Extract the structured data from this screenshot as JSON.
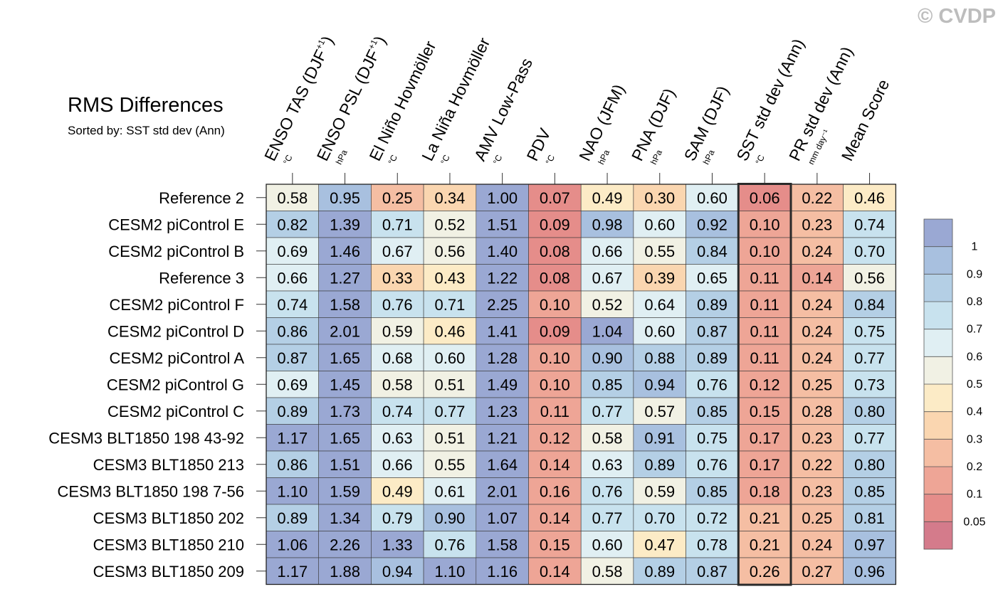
{
  "watermark": "© CVDP",
  "chart_data": {
    "type": "heatmap",
    "title": "RMS Differences",
    "subtitle": "Sorted by: SST std dev (Ann)",
    "columns": [
      {
        "label": "ENSO TAS (DJF",
        "sup": "+1",
        "close": ")",
        "unit": "°C"
      },
      {
        "label": "ENSO PSL (DJF",
        "sup": "+1",
        "close": ")",
        "unit": "hPa"
      },
      {
        "label": "El Niño Hovmöller",
        "sup": "",
        "close": "",
        "unit": "°C"
      },
      {
        "label": "La Niña Hovmöller",
        "sup": "",
        "close": "",
        "unit": "°C"
      },
      {
        "label": "AMV Low-Pass",
        "sup": "",
        "close": "",
        "unit": "°C"
      },
      {
        "label": "PDV",
        "sup": "",
        "close": "",
        "unit": "°C"
      },
      {
        "label": "NAO (JFM)",
        "sup": "",
        "close": "",
        "unit": "hPa"
      },
      {
        "label": "PNA (DJF)",
        "sup": "",
        "close": "",
        "unit": "hPa"
      },
      {
        "label": "SAM (DJF)",
        "sup": "",
        "close": "",
        "unit": "hPa"
      },
      {
        "label": "SST std dev (Ann)",
        "sup": "",
        "close": "",
        "unit": "°C"
      },
      {
        "label": "PR std dev (Ann)",
        "sup": "",
        "close": "",
        "unit": "mm day⁻¹"
      },
      {
        "label": "Mean Score",
        "sup": "",
        "close": "",
        "unit": ""
      }
    ],
    "highlight_column": 9,
    "rows": [
      {
        "label": "Reference 2",
        "values": [
          "0.58",
          "0.95",
          "0.25",
          "0.34",
          "1.00",
          "0.07",
          "0.49",
          "0.30",
          "0.60",
          "0.06",
          "0.22",
          "0.46"
        ]
      },
      {
        "label": "CESM2 piControl E",
        "values": [
          "0.82",
          "1.39",
          "0.71",
          "0.52",
          "1.51",
          "0.09",
          "0.98",
          "0.60",
          "0.92",
          "0.10",
          "0.23",
          "0.74"
        ]
      },
      {
        "label": "CESM2 piControl B",
        "values": [
          "0.69",
          "1.46",
          "0.67",
          "0.56",
          "1.40",
          "0.08",
          "0.66",
          "0.55",
          "0.84",
          "0.10",
          "0.24",
          "0.70"
        ]
      },
      {
        "label": "Reference 3",
        "values": [
          "0.66",
          "1.27",
          "0.33",
          "0.43",
          "1.22",
          "0.08",
          "0.67",
          "0.39",
          "0.65",
          "0.11",
          "0.14",
          "0.56"
        ]
      },
      {
        "label": "CESM2 piControl F",
        "values": [
          "0.74",
          "1.58",
          "0.76",
          "0.71",
          "2.25",
          "0.10",
          "0.52",
          "0.64",
          "0.89",
          "0.11",
          "0.24",
          "0.84"
        ]
      },
      {
        "label": "CESM2 piControl D",
        "values": [
          "0.86",
          "2.01",
          "0.59",
          "0.46",
          "1.41",
          "0.09",
          "1.04",
          "0.60",
          "0.87",
          "0.11",
          "0.24",
          "0.75"
        ]
      },
      {
        "label": "CESM2 piControl A",
        "values": [
          "0.87",
          "1.65",
          "0.68",
          "0.60",
          "1.28",
          "0.10",
          "0.90",
          "0.88",
          "0.89",
          "0.11",
          "0.24",
          "0.77"
        ]
      },
      {
        "label": "CESM2 piControl G",
        "values": [
          "0.69",
          "1.45",
          "0.58",
          "0.51",
          "1.49",
          "0.10",
          "0.85",
          "0.94",
          "0.76",
          "0.12",
          "0.25",
          "0.73"
        ]
      },
      {
        "label": "CESM2 piControl C",
        "values": [
          "0.89",
          "1.73",
          "0.74",
          "0.77",
          "1.23",
          "0.11",
          "0.77",
          "0.57",
          "0.85",
          "0.15",
          "0.28",
          "0.80"
        ]
      },
      {
        "label": "CESM3 BLT1850 198 43-92",
        "values": [
          "1.17",
          "1.65",
          "0.63",
          "0.51",
          "1.21",
          "0.12",
          "0.58",
          "0.91",
          "0.75",
          "0.17",
          "0.23",
          "0.77"
        ]
      },
      {
        "label": "CESM3 BLT1850 213",
        "values": [
          "0.86",
          "1.51",
          "0.66",
          "0.55",
          "1.64",
          "0.14",
          "0.63",
          "0.89",
          "0.76",
          "0.17",
          "0.22",
          "0.80"
        ]
      },
      {
        "label": "CESM3 BLT1850 198 7-56",
        "values": [
          "1.10",
          "1.59",
          "0.49",
          "0.61",
          "2.01",
          "0.16",
          "0.76",
          "0.59",
          "0.85",
          "0.18",
          "0.23",
          "0.85"
        ]
      },
      {
        "label": "CESM3 BLT1850 202",
        "values": [
          "0.89",
          "1.34",
          "0.79",
          "0.90",
          "1.07",
          "0.14",
          "0.77",
          "0.70",
          "0.72",
          "0.21",
          "0.25",
          "0.81"
        ]
      },
      {
        "label": "CESM3 BLT1850 210",
        "values": [
          "1.06",
          "2.26",
          "1.33",
          "0.76",
          "1.58",
          "0.15",
          "0.60",
          "0.47",
          "0.78",
          "0.21",
          "0.24",
          "0.97"
        ]
      },
      {
        "label": "CESM3 BLT1850 209",
        "values": [
          "1.17",
          "1.88",
          "0.94",
          "1.10",
          "1.16",
          "0.14",
          "0.58",
          "0.89",
          "0.87",
          "0.26",
          "0.27",
          "0.96"
        ]
      }
    ],
    "colorbar": {
      "ticks": [
        "1",
        "0.9",
        "0.8",
        "0.7",
        "0.6",
        "0.5",
        "0.4",
        "0.3",
        "0.2",
        "0.1",
        "0.05"
      ],
      "levels": [
        0.05,
        0.1,
        0.2,
        0.3,
        0.4,
        0.5,
        0.6,
        0.7,
        0.8,
        0.9,
        1
      ],
      "colors": [
        "#d47b8b",
        "#e58d8a",
        "#eea596",
        "#f5bea3",
        "#fad6b0",
        "#fcebc6",
        "#f1f1e4",
        "#e0eff3",
        "#c8e2ee",
        "#b4cfe5",
        "#a8c0df",
        "#9aa8d3"
      ]
    }
  }
}
